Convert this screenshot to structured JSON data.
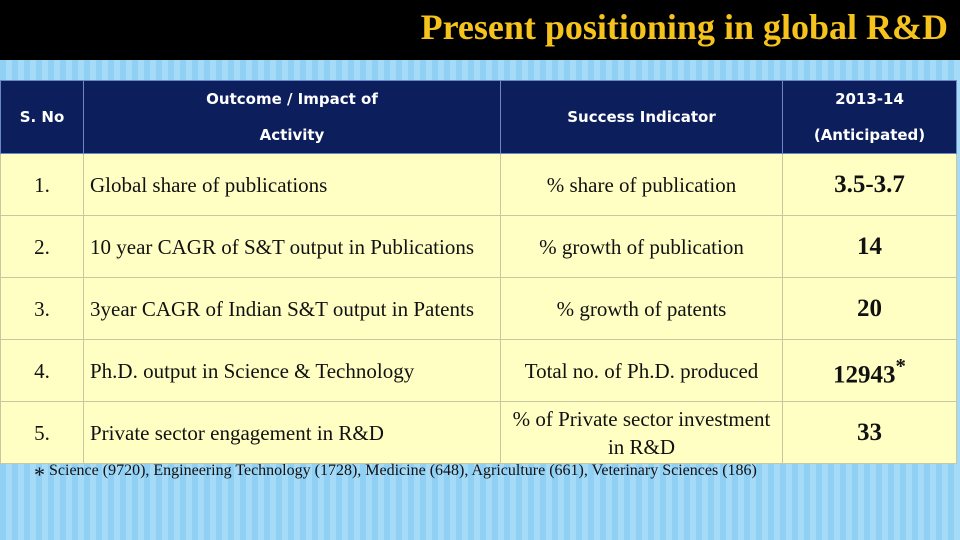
{
  "header": {
    "title": "Present positioning in global R&D"
  },
  "table": {
    "headers": [
      [
        "S. No"
      ],
      [
        "Outcome / Impact of",
        "Activity"
      ],
      [
        "Success Indicator"
      ],
      [
        "2013-14",
        "(Anticipated)"
      ]
    ],
    "rows": [
      [
        "1.",
        "Global share of publications",
        "% share of publication",
        "3.5-3.7"
      ],
      [
        "2.",
        "10 year CAGR of S&T output in Publications",
        "% growth of publication",
        "14"
      ],
      [
        "3.",
        "3year CAGR of  Indian S&T output in Patents",
        "% growth of patents",
        "20"
      ],
      [
        "4.",
        "Ph.D. output in Science & Technology",
        "Total no. of Ph.D. produced",
        "12943"
      ],
      [
        "5.",
        "Private sector engagement in R&D",
        "% of Private sector investment in R&D",
        "33"
      ]
    ]
  },
  "footnote": {
    "marker": "*",
    "text": "Science (9720), Engineering Technology (1728), Medicine (648), Agriculture (661), Veterinary Sciences (186)"
  }
}
